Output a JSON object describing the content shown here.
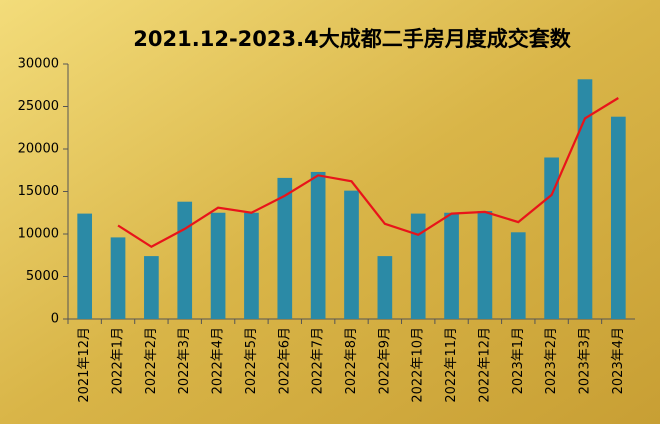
{
  "chart_data": {
    "type": "bar",
    "title": "2021.12-2023.4大成都二手房月度成交套数",
    "categories": [
      "2021年12月",
      "2022年1月",
      "2022年2月",
      "2022年3月",
      "2022年4月",
      "2022年5月",
      "2022年6月",
      "2022年7月",
      "2022年8月",
      "2022年9月",
      "2022年10月",
      "2022年11月",
      "2022年12月",
      "2023年1月",
      "2023年2月",
      "2023年3月",
      "2023年4月"
    ],
    "series": [
      {
        "type": "bar",
        "color": "#2b8aa6",
        "values": [
          12400,
          9600,
          7400,
          13800,
          12500,
          12500,
          16600,
          17300,
          15100,
          7400,
          12400,
          12500,
          12700,
          10200,
          19000,
          28200,
          23800
        ]
      },
      {
        "type": "line",
        "color": "#e8141a",
        "values": [
          null,
          11000,
          8500,
          10600,
          13100,
          12500,
          14500,
          16900,
          16200,
          11200,
          9900,
          12400,
          12600,
          11400,
          14600,
          23600,
          26000
        ]
      }
    ],
    "ylim": [
      0,
      30000
    ],
    "yticks": [
      0,
      5000,
      10000,
      15000,
      20000,
      25000,
      30000
    ],
    "grid": false
  }
}
